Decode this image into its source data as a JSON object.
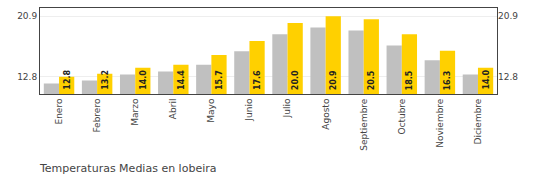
{
  "chart_data": {
    "type": "bar",
    "title": "Temperaturas Medias en lobeira",
    "categories": [
      "Enero",
      "Febrero",
      "Marzo",
      "Abril",
      "Mayo",
      "Junio",
      "Julio",
      "Agosto",
      "Septiembre",
      "Octubre",
      "Noviembre",
      "Diciembre"
    ],
    "series": [
      {
        "color": "#C0C0C0",
        "values": [
          11.9,
          12.3,
          13.1,
          13.5,
          14.4,
          16.2,
          18.5,
          19.4,
          19.0,
          17.0,
          15.0,
          13.1
        ]
      },
      {
        "color": "#FFD000",
        "values": [
          12.8,
          13.2,
          14.0,
          14.4,
          15.7,
          17.6,
          20.0,
          20.9,
          20.5,
          18.5,
          16.3,
          14.0
        ],
        "value_labels": [
          "12.8",
          "13.2",
          "14.0",
          "14.4",
          "15.7",
          "17.6",
          "20.0",
          "20.9",
          "20.5",
          "18.5",
          "16.3",
          "14.0"
        ],
        "data_labels": true
      }
    ],
    "ylim": [
      10.5,
      22.0
    ],
    "yticks": [
      12.8,
      20.9
    ],
    "y2lim": [
      10.5,
      22.0
    ],
    "y2ticks": [
      12.8,
      20.9
    ],
    "grid": true
  }
}
